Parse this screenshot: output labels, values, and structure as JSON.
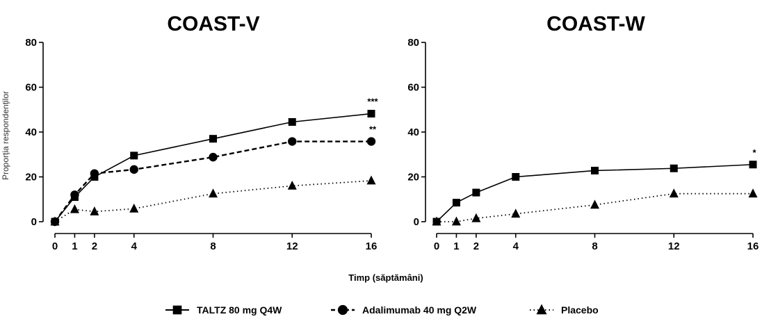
{
  "chart_data": {
    "type": "line",
    "ylabel": "Proporția respondenților",
    "xlabel": "Timp (săptămâni)",
    "legend": {
      "placement": "bottom",
      "entries": [
        {
          "label": "TALTZ 80 mg Q4W",
          "marker": "square",
          "dash": "solid"
        },
        {
          "label": "Adalimumab 40 mg Q2W",
          "marker": "circle",
          "dash": "dashed"
        },
        {
          "label": "Placebo",
          "marker": "triangle",
          "dash": "dotted"
        }
      ]
    },
    "panels": [
      {
        "title": "COAST-V",
        "x_ticks": [
          0,
          1,
          2,
          4,
          8,
          12,
          16
        ],
        "y_ticks": [
          0,
          20,
          40,
          60,
          80
        ],
        "xlim": [
          0,
          16
        ],
        "ylim": [
          0,
          80
        ],
        "series": [
          {
            "key": "taltz",
            "x": [
              0,
              1,
              2,
              4,
              8,
              12,
              16
            ],
            "values": [
              0,
              11,
              20,
              29.5,
              37,
              44.5,
              48.2
            ],
            "end_annotation": "***"
          },
          {
            "key": "adalimumab",
            "x": [
              0,
              1,
              2,
              4,
              8,
              12,
              16
            ],
            "values": [
              0,
              12,
              21.5,
              23.3,
              28.8,
              35.8,
              35.8
            ],
            "end_annotation": "**"
          },
          {
            "key": "placebo",
            "x": [
              0,
              1,
              2,
              4,
              8,
              12,
              16
            ],
            "values": [
              0,
              5.5,
              4.5,
              5.8,
              12.5,
              16,
              18.3
            ],
            "end_annotation": ""
          }
        ]
      },
      {
        "title": "COAST-W",
        "x_ticks": [
          0,
          1,
          2,
          4,
          8,
          12,
          16
        ],
        "y_ticks": [
          0,
          20,
          40,
          60,
          80
        ],
        "xlim": [
          0,
          16
        ],
        "ylim": [
          0,
          80
        ],
        "series": [
          {
            "key": "taltz",
            "x": [
              0,
              1,
              2,
              4,
              8,
              12,
              16
            ],
            "values": [
              0,
              8.5,
              13,
              20,
              22.8,
              23.8,
              25.5
            ],
            "end_annotation": "*"
          },
          {
            "key": "placebo",
            "x": [
              0,
              1,
              2,
              4,
              8,
              12,
              16
            ],
            "values": [
              0,
              0,
              1.5,
              3.5,
              7.5,
              12.5,
              12.5
            ],
            "end_annotation": ""
          }
        ]
      }
    ]
  }
}
